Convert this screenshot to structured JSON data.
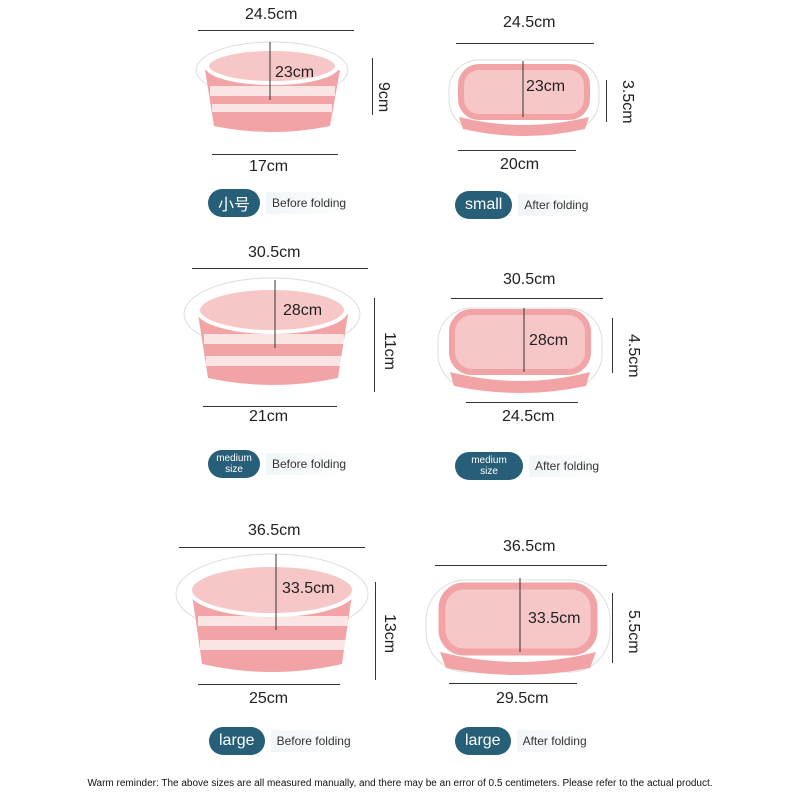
{
  "items": [
    {
      "width_top": "24.5cm",
      "inner": "23cm",
      "height": "9cm",
      "bottom": "17cm",
      "size_label": "小号",
      "state": "Before folding"
    },
    {
      "width_top": "24.5cm",
      "inner": "23cm",
      "height": "3.5cm",
      "bottom": "20cm",
      "size_label": "small",
      "state": "After folding"
    },
    {
      "width_top": "30.5cm",
      "inner": "28cm",
      "height": "11cm",
      "bottom": "21cm",
      "size_label": "medium size",
      "state": "Before folding"
    },
    {
      "width_top": "30.5cm",
      "inner": "28cm",
      "height": "4.5cm",
      "bottom": "24.5cm",
      "size_label": "medium size",
      "state": "After folding"
    },
    {
      "width_top": "36.5cm",
      "inner": "33.5cm",
      "height": "13cm",
      "bottom": "25cm",
      "size_label": "large",
      "state": "Before folding"
    },
    {
      "width_top": "36.5cm",
      "inner": "33.5cm",
      "height": "5.5cm",
      "bottom": "29.5cm",
      "size_label": "large",
      "state": "After folding"
    }
  ],
  "note": "Warm reminder: The above sizes are all measured manually, and there may be an error of 0.5 centimeters. Please refer to the actual product.",
  "colors": {
    "pink": "#f2a3a5",
    "white": "#ffffff",
    "label": "#275f78"
  }
}
